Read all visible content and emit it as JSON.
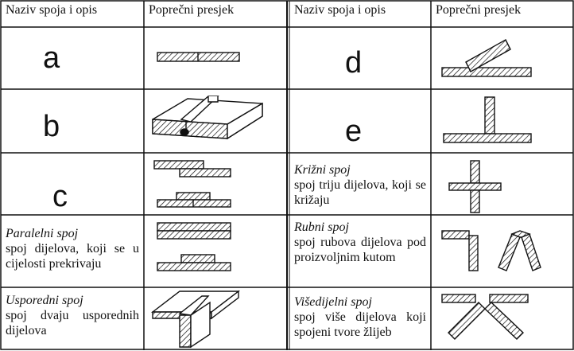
{
  "header": {
    "col_name": "Naziv spoja i opis",
    "col_section": "Poprečni presjek"
  },
  "left_rows": [
    {
      "letter": "a"
    },
    {
      "letter": "b"
    },
    {
      "letter": "c"
    },
    {
      "title": "Paralelni spoj",
      "description": "spoj dijelova, koji se u cijelosti prekrivaju"
    },
    {
      "title": "Usporedni spoj",
      "description": "spoj dvaju usporednih dijelova"
    }
  ],
  "right_rows": [
    {
      "letter": "d"
    },
    {
      "letter": "e"
    },
    {
      "title": "Križni spoj",
      "description": "spoj triju dijelova, koji se križaju"
    },
    {
      "title": "Rubni spoj",
      "description": "spoj rubova dijelova pod proizvoljnim kutom"
    },
    {
      "title": "Višedijelni spoj",
      "description": "spoj više dijelova koji spojeni tvore žlijeb"
    }
  ]
}
